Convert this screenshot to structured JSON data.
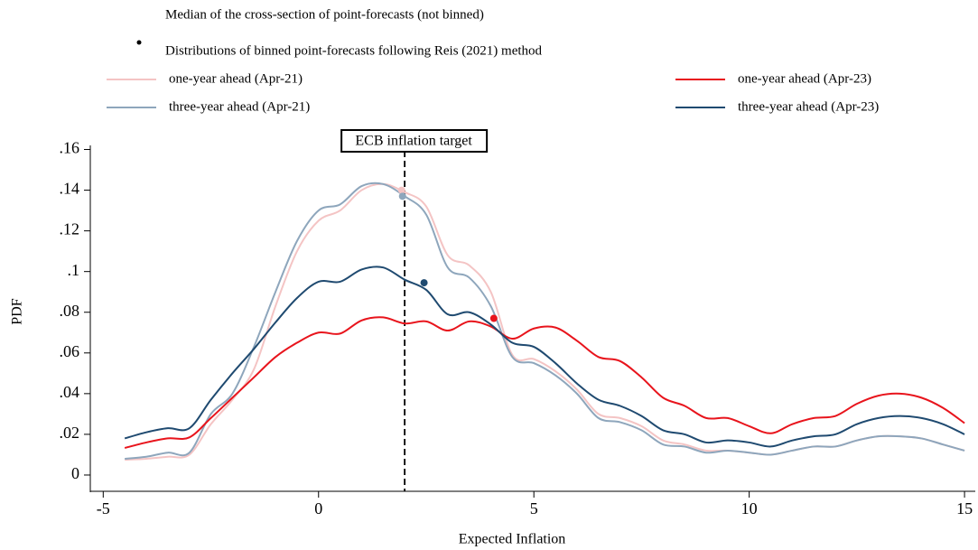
{
  "chart_data": {
    "type": "line",
    "legend_note": "Median of the cross-section of point-forecasts (not binned)",
    "legend_subtitle": "Distributions of binned point-forecasts following Reis (2021) method",
    "annotation": {
      "text": "ECB inflation target",
      "x": 2
    },
    "x_label": "Expected Inflation",
    "y_label": "PDF",
    "xlim": [
      -5.3,
      15.25
    ],
    "ylim": [
      -0.008,
      0.162
    ],
    "xticks": [
      -5,
      0,
      5,
      10,
      15
    ],
    "yticks": [
      0,
      {
        "value": 0.02,
        "label": ".02"
      },
      {
        "value": 0.04,
        "label": ".04"
      },
      {
        "value": 0.06,
        "label": ".06"
      },
      {
        "value": 0.08,
        "label": ".08"
      },
      {
        "value": 0.1,
        "label": ".1"
      },
      {
        "value": 0.12,
        "label": ".12"
      },
      {
        "value": 0.14,
        "label": ".14"
      },
      {
        "value": 0.16,
        "label": ".16"
      }
    ],
    "x": [
      -4.5,
      -4,
      -3.5,
      -3,
      -2.5,
      -2,
      -1.5,
      -1,
      -0.5,
      0,
      0.5,
      1,
      1.5,
      2,
      2.5,
      3,
      3.5,
      4,
      4.5,
      5,
      5.5,
      6,
      6.5,
      7,
      7.5,
      8,
      8.5,
      9,
      9.5,
      10,
      10.5,
      11,
      11.5,
      12,
      12.5,
      13,
      13.5,
      14,
      14.5,
      15
    ],
    "series": [
      {
        "name": "one-year ahead (Apr-21)",
        "color": "#f4c4c4",
        "median_x": 1.93,
        "median": 0.14,
        "values": [
          0.0075,
          0.008,
          0.009,
          0.01,
          0.025,
          0.037,
          0.052,
          0.083,
          0.11,
          0.125,
          0.13,
          0.14,
          0.143,
          0.139,
          0.132,
          0.108,
          0.103,
          0.09,
          0.059,
          0.057,
          0.051,
          0.042,
          0.03,
          0.028,
          0.024,
          0.017,
          0.015,
          0.012,
          0.012,
          0.011,
          0.01,
          0.012,
          0.014,
          0.014,
          0.017,
          0.019,
          0.019,
          0.018,
          0.015,
          0.012
        ]
      },
      {
        "name": "three-year ahead (Apr-21)",
        "color": "#8ea6bc",
        "median_x": 1.95,
        "median": 0.137,
        "values": [
          0.008,
          0.009,
          0.011,
          0.011,
          0.03,
          0.04,
          0.063,
          0.09,
          0.115,
          0.13,
          0.133,
          0.142,
          0.143,
          0.137,
          0.128,
          0.102,
          0.097,
          0.083,
          0.058,
          0.055,
          0.049,
          0.04,
          0.028,
          0.026,
          0.022,
          0.015,
          0.014,
          0.011,
          0.012,
          0.011,
          0.01,
          0.012,
          0.014,
          0.014,
          0.017,
          0.019,
          0.019,
          0.018,
          0.015,
          0.012
        ]
      },
      {
        "name": "one-year ahead (Apr-23)",
        "color": "#e8141c",
        "median_x": 4.07,
        "median": 0.077,
        "values": [
          0.0133,
          0.016,
          0.018,
          0.0185,
          0.028,
          0.038,
          0.048,
          0.058,
          0.065,
          0.07,
          0.0695,
          0.076,
          0.0775,
          0.0745,
          0.0755,
          0.071,
          0.0755,
          0.073,
          0.067,
          0.072,
          0.0725,
          0.066,
          0.058,
          0.056,
          0.048,
          0.038,
          0.034,
          0.028,
          0.028,
          0.024,
          0.0205,
          0.025,
          0.028,
          0.029,
          0.035,
          0.039,
          0.04,
          0.038,
          0.033,
          0.0255
        ]
      },
      {
        "name": "three-year ahead (Apr-23)",
        "color": "#1f4a70",
        "median_x": 2.45,
        "median": 0.0945,
        "values": [
          0.018,
          0.021,
          0.023,
          0.023,
          0.037,
          0.05,
          0.062,
          0.075,
          0.087,
          0.095,
          0.095,
          0.101,
          0.102,
          0.096,
          0.091,
          0.079,
          0.08,
          0.074,
          0.065,
          0.063,
          0.055,
          0.045,
          0.037,
          0.034,
          0.029,
          0.022,
          0.02,
          0.016,
          0.017,
          0.016,
          0.014,
          0.017,
          0.019,
          0.02,
          0.025,
          0.028,
          0.029,
          0.028,
          0.025,
          0.02
        ]
      }
    ]
  }
}
